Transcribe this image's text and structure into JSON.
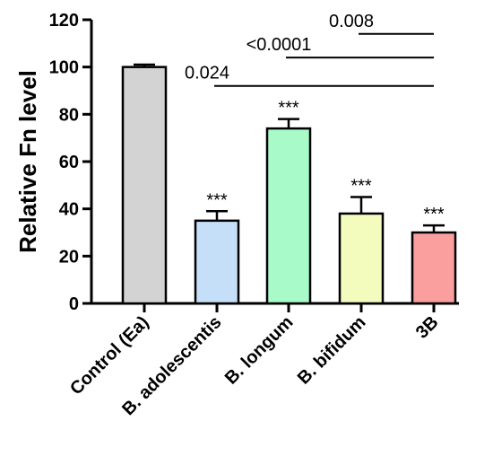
{
  "chart_data": {
    "type": "bar",
    "ylabel": "Relative Fn level",
    "xlabel": "",
    "ylim": [
      0,
      120
    ],
    "yticks": [
      0,
      20,
      40,
      60,
      80,
      100,
      120
    ],
    "categories": [
      "Control (Ea)",
      "B. adolescentis",
      "B. longum",
      "B. bifidum",
      "3B"
    ],
    "values": [
      100,
      35,
      74,
      38,
      30
    ],
    "errors": [
      1,
      4,
      4,
      7,
      3
    ],
    "colors": [
      "#d3d3d3",
      "#c5dff8",
      "#a8fac8",
      "#f3fcbc",
      "#fa9e9e"
    ],
    "bar_labels": [
      "",
      "***",
      "***",
      "***",
      "***"
    ],
    "comparisons": [
      {
        "label": "0.008",
        "from": 3,
        "to": 4,
        "y": 114
      },
      {
        "label": "<0.0001",
        "from": 2,
        "to": 4,
        "y": 104
      },
      {
        "label": "0.024",
        "from": 1,
        "to": 4,
        "y": 92
      }
    ],
    "grid": false,
    "legend": "none"
  }
}
